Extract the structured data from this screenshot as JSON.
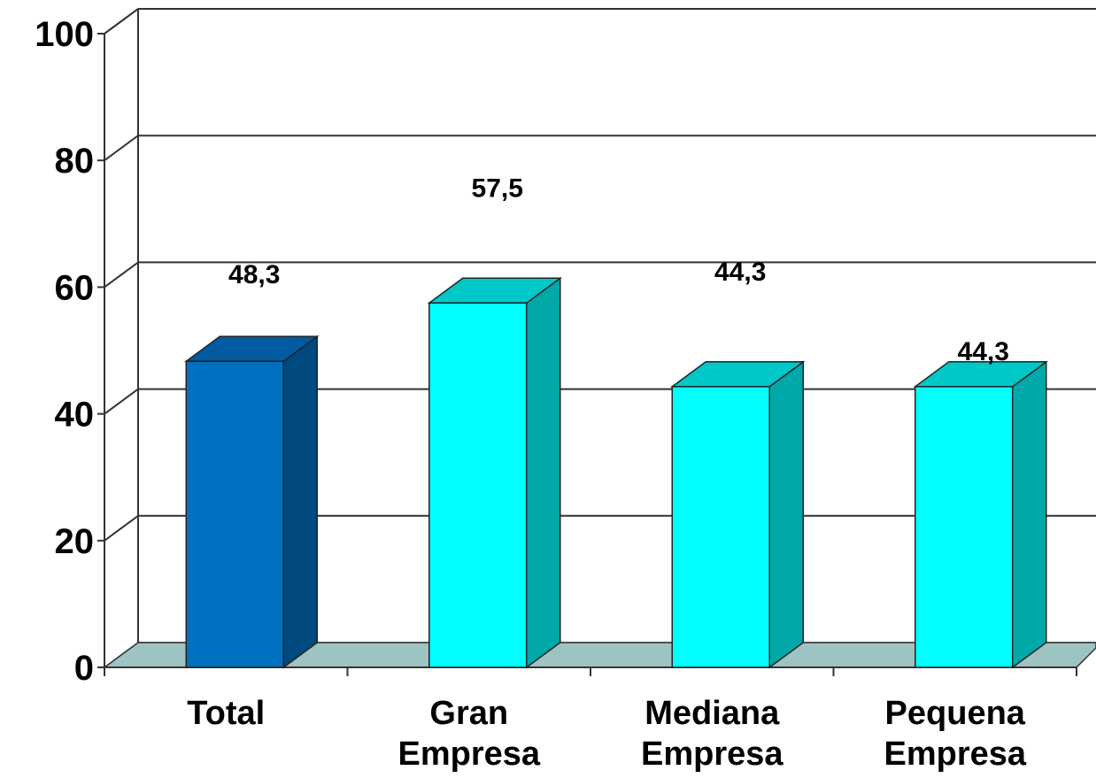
{
  "chart_data": {
    "type": "bar",
    "categories": [
      [
        "Total"
      ],
      [
        "Gran",
        "Empresa"
      ],
      [
        "Mediana",
        "Empresa"
      ],
      [
        "Pequena",
        "Empresa"
      ]
    ],
    "values": [
      48.3,
      57.5,
      44.3,
      44.3
    ],
    "value_labels": [
      "48,3",
      "57,5",
      "44,3",
      "44,3"
    ],
    "y_ticks": [
      "0",
      "20",
      "40",
      "60",
      "80",
      "100"
    ],
    "ylim": [
      0,
      100
    ],
    "grid": true,
    "style": "3d-column",
    "colors": {
      "highlight_front": "#0070C0",
      "highlight_side": "#004A80",
      "highlight_top": "#005BA0",
      "bar_front": "#00FFFF",
      "bar_side": "#00A8A8",
      "bar_top": "#00C8C8",
      "floor": "#9EC3C3"
    },
    "title": "",
    "xlabel": "",
    "ylabel": ""
  }
}
